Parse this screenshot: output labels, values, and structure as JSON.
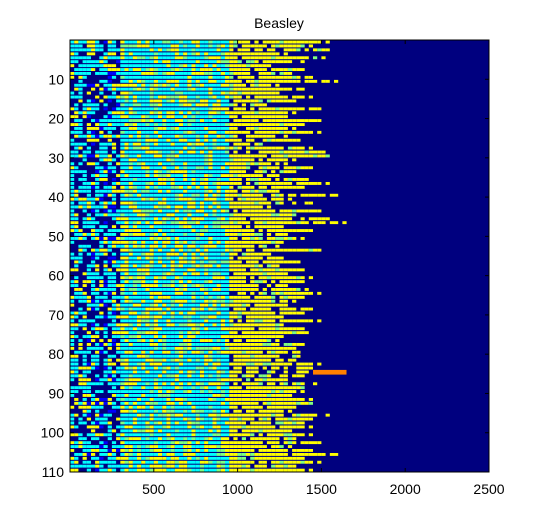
{
  "chart_data": {
    "type": "heatmap",
    "title": "Beasley",
    "xlabel": "",
    "ylabel": "",
    "xlim": [
      0,
      2500
    ],
    "ylim": [
      0,
      110
    ],
    "y_reversed": true,
    "x_ticks": [
      500,
      1000,
      1500,
      2000,
      2500
    ],
    "x_tick_labels": [
      "500",
      "1000",
      "1500",
      "2000",
      "2500"
    ],
    "y_ticks": [
      10,
      20,
      30,
      40,
      50,
      60,
      70,
      80,
      90,
      100,
      110
    ],
    "y_tick_labels": [
      "10",
      "20",
      "30",
      "40",
      "50",
      "60",
      "70",
      "80",
      "90",
      "100",
      "110"
    ],
    "grid": false,
    "colormap": "jet",
    "colors": {
      "background": "#00007f",
      "low": "#0000ff",
      "mid_low": "#00ffff",
      "mid": "#7fff7f",
      "mid_high": "#ffff00",
      "high": "#ff7f00",
      "max": "#ff0000"
    },
    "rows": 110,
    "row_extent_x_estimates": [
      1550,
      1450,
      1600,
      1300,
      1550,
      1400,
      1200,
      1450,
      1350,
      1500,
      1600,
      1250,
      1400,
      1300,
      1450,
      1350,
      1200,
      1500,
      1400,
      1300,
      1550,
      1450,
      1350,
      1500,
      1300,
      1400,
      1200,
      1450,
      1550,
      1600,
      1350,
      1300,
      1500,
      1400,
      1250,
      1450,
      1550,
      1400,
      1300,
      1650,
      1350,
      1450,
      1200,
      1500,
      1400,
      1550,
      1650,
      1300,
      1450,
      1350,
      1400,
      1300,
      1250,
      1500,
      1200,
      1350,
      1400,
      1300,
      1450,
      1350,
      1500,
      1400,
      1300,
      1450,
      1500,
      1400,
      1350,
      1300,
      1450,
      1400,
      1350,
      1500,
      1300,
      1400,
      1450,
      1350,
      1300,
      1400,
      1350,
      1450,
      1400,
      1350,
      1500,
      1450,
      1650,
      1400,
      1350,
      1500,
      1450,
      1400,
      1350,
      1450,
      1500,
      1400,
      1350,
      1550,
      1450,
      1400,
      1500,
      1350,
      1450,
      1400,
      1500,
      1350,
      1450,
      1600,
      1400,
      1500,
      1350,
      1450
    ],
    "hotspot": {
      "row": 85,
      "x_range": [
        1450,
        1650
      ],
      "color": "#ff7f00"
    }
  }
}
